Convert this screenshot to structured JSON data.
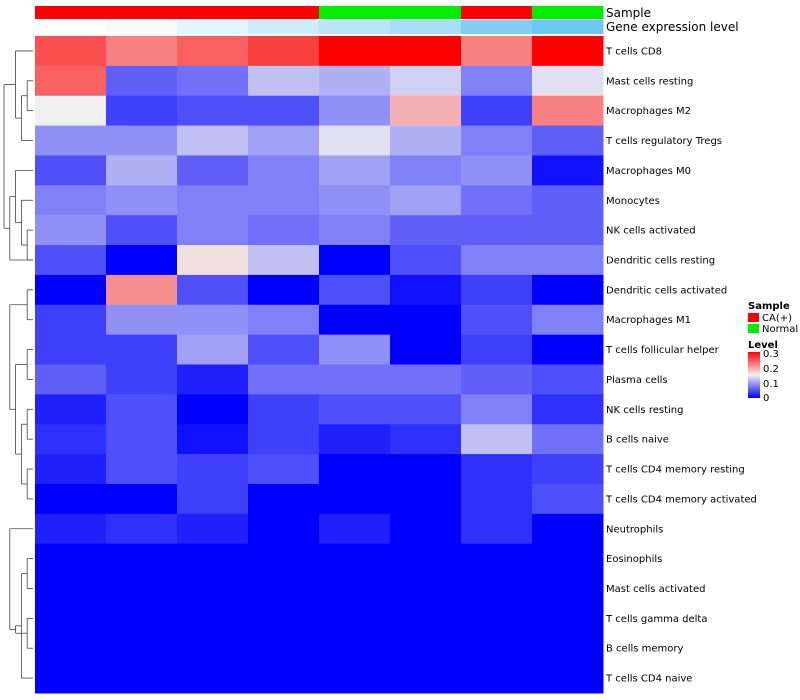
{
  "chart_data": {
    "type": "heatmap",
    "title": "",
    "column_tracks": [
      {
        "name": "Sample",
        "label": "Sample"
      },
      {
        "name": "Gene expression level",
        "label": "Gene expression level"
      }
    ],
    "columns": [
      {
        "sample": "CA(+)",
        "gene_expression_level": 0.1
      },
      {
        "sample": "CA(+)",
        "gene_expression_level": 0.11
      },
      {
        "sample": "CA(+)",
        "gene_expression_level": 0.13
      },
      {
        "sample": "CA(+)",
        "gene_expression_level": 0.15
      },
      {
        "sample": "Normal",
        "gene_expression_level": 0.17
      },
      {
        "sample": "Normal",
        "gene_expression_level": 0.19
      },
      {
        "sample": "CA(+)",
        "gene_expression_level": 0.23
      },
      {
        "sample": "Normal",
        "gene_expression_level": 0.25
      }
    ],
    "rows": [
      "T cells CD8",
      "Mast cells resting",
      "Macrophages M2",
      "T cells regulatory  Tregs",
      "Macrophages M0",
      "Monocytes",
      "NK cells activated",
      "Dendritic cells resting",
      "Dendritic cells activated",
      "Macrophages M1",
      "T cells follicular helper",
      "Plasma cells",
      "NK cells resting",
      "B cells naive",
      "T cells CD4 memory resting",
      "T cells CD4 memory activated",
      "Neutrophils",
      "Eosinophils",
      "Mast cells activated",
      "T cells gamma delta",
      "B cells memory",
      "T cells CD4 naive"
    ],
    "values": [
      [
        0.25,
        0.22,
        0.24,
        0.26,
        0.3,
        0.3,
        0.22,
        0.3
      ],
      [
        0.24,
        0.06,
        0.07,
        0.12,
        0.11,
        0.13,
        0.08,
        0.14
      ],
      [
        0.15,
        0.04,
        0.05,
        0.05,
        0.09,
        0.19,
        0.04,
        0.22
      ],
      [
        0.09,
        0.09,
        0.12,
        0.1,
        0.14,
        0.11,
        0.08,
        0.06
      ],
      [
        0.05,
        0.11,
        0.06,
        0.08,
        0.1,
        0.08,
        0.09,
        0.01
      ],
      [
        0.08,
        0.09,
        0.08,
        0.08,
        0.09,
        0.1,
        0.07,
        0.06
      ],
      [
        0.09,
        0.05,
        0.08,
        0.07,
        0.08,
        0.06,
        0.06,
        0.06
      ],
      [
        0.05,
        0.0,
        0.16,
        0.12,
        0.0,
        0.05,
        0.08,
        0.08
      ],
      [
        0.0,
        0.21,
        0.05,
        0.0,
        0.05,
        0.01,
        0.04,
        0.0
      ],
      [
        0.04,
        0.09,
        0.09,
        0.08,
        0.0,
        0.0,
        0.05,
        0.08
      ],
      [
        0.04,
        0.04,
        0.1,
        0.05,
        0.09,
        0.0,
        0.04,
        0.0
      ],
      [
        0.06,
        0.04,
        0.02,
        0.07,
        0.07,
        0.07,
        0.06,
        0.05
      ],
      [
        0.02,
        0.05,
        0.0,
        0.04,
        0.05,
        0.05,
        0.08,
        0.03
      ],
      [
        0.03,
        0.05,
        0.01,
        0.04,
        0.02,
        0.03,
        0.12,
        0.07
      ],
      [
        0.02,
        0.05,
        0.04,
        0.05,
        0.0,
        0.0,
        0.03,
        0.04
      ],
      [
        0.0,
        0.0,
        0.04,
        0.0,
        0.0,
        0.0,
        0.03,
        0.05
      ],
      [
        0.02,
        0.03,
        0.02,
        0.0,
        0.02,
        0.0,
        0.03,
        0.0
      ],
      [
        0.0,
        0.0,
        0.0,
        0.0,
        0.0,
        0.0,
        0.0,
        0.0
      ],
      [
        0.0,
        0.0,
        0.0,
        0.0,
        0.0,
        0.0,
        0.0,
        0.0
      ],
      [
        0.0,
        0.0,
        0.0,
        0.0,
        0.0,
        0.0,
        0.0,
        0.0
      ],
      [
        0.0,
        0.0,
        0.0,
        0.0,
        0.0,
        0.0,
        0.0,
        0.0
      ],
      [
        0.0,
        0.0,
        0.0,
        0.0,
        0.0,
        0.0,
        0.0,
        0.0
      ]
    ],
    "color_scale": {
      "min": 0,
      "mid": 0.15,
      "max": 0.3,
      "low": "#0000ff",
      "midColor": "#f0f0f0",
      "high": "#ff0000"
    },
    "sample_colors": {
      "CA(+)": "#ff0000",
      "Normal": "#00ee00"
    },
    "expression_scale": {
      "low": "#ffffff",
      "high": "#6cc8f0"
    },
    "row_dendrogram": [
      [
        17,
        18
      ],
      [
        19,
        20
      ],
      [
        22,
        21
      ],
      [
        23,
        24
      ],
      [
        16,
        25
      ],
      [
        14,
        15
      ],
      [
        12,
        13
      ],
      [
        27,
        28
      ],
      [
        10,
        11
      ],
      [
        29,
        30
      ],
      [
        8,
        9
      ],
      [
        31,
        32
      ],
      [
        6,
        7
      ],
      [
        5,
        34
      ],
      [
        4,
        35
      ],
      [
        7,
        36
      ],
      [
        1,
        2
      ],
      [
        38,
        3
      ],
      [
        0,
        39
      ],
      [
        40,
        37
      ]
    ],
    "legend": {
      "sample_title": "Sample",
      "sample_items": [
        {
          "label": "CA(+)",
          "color": "#ff0000"
        },
        {
          "label": "Normal",
          "color": "#00ee00"
        }
      ],
      "level_title": "Level",
      "level_ticks": [
        "0.3",
        "0.2",
        "0.1",
        "0"
      ],
      "position": "right"
    }
  }
}
